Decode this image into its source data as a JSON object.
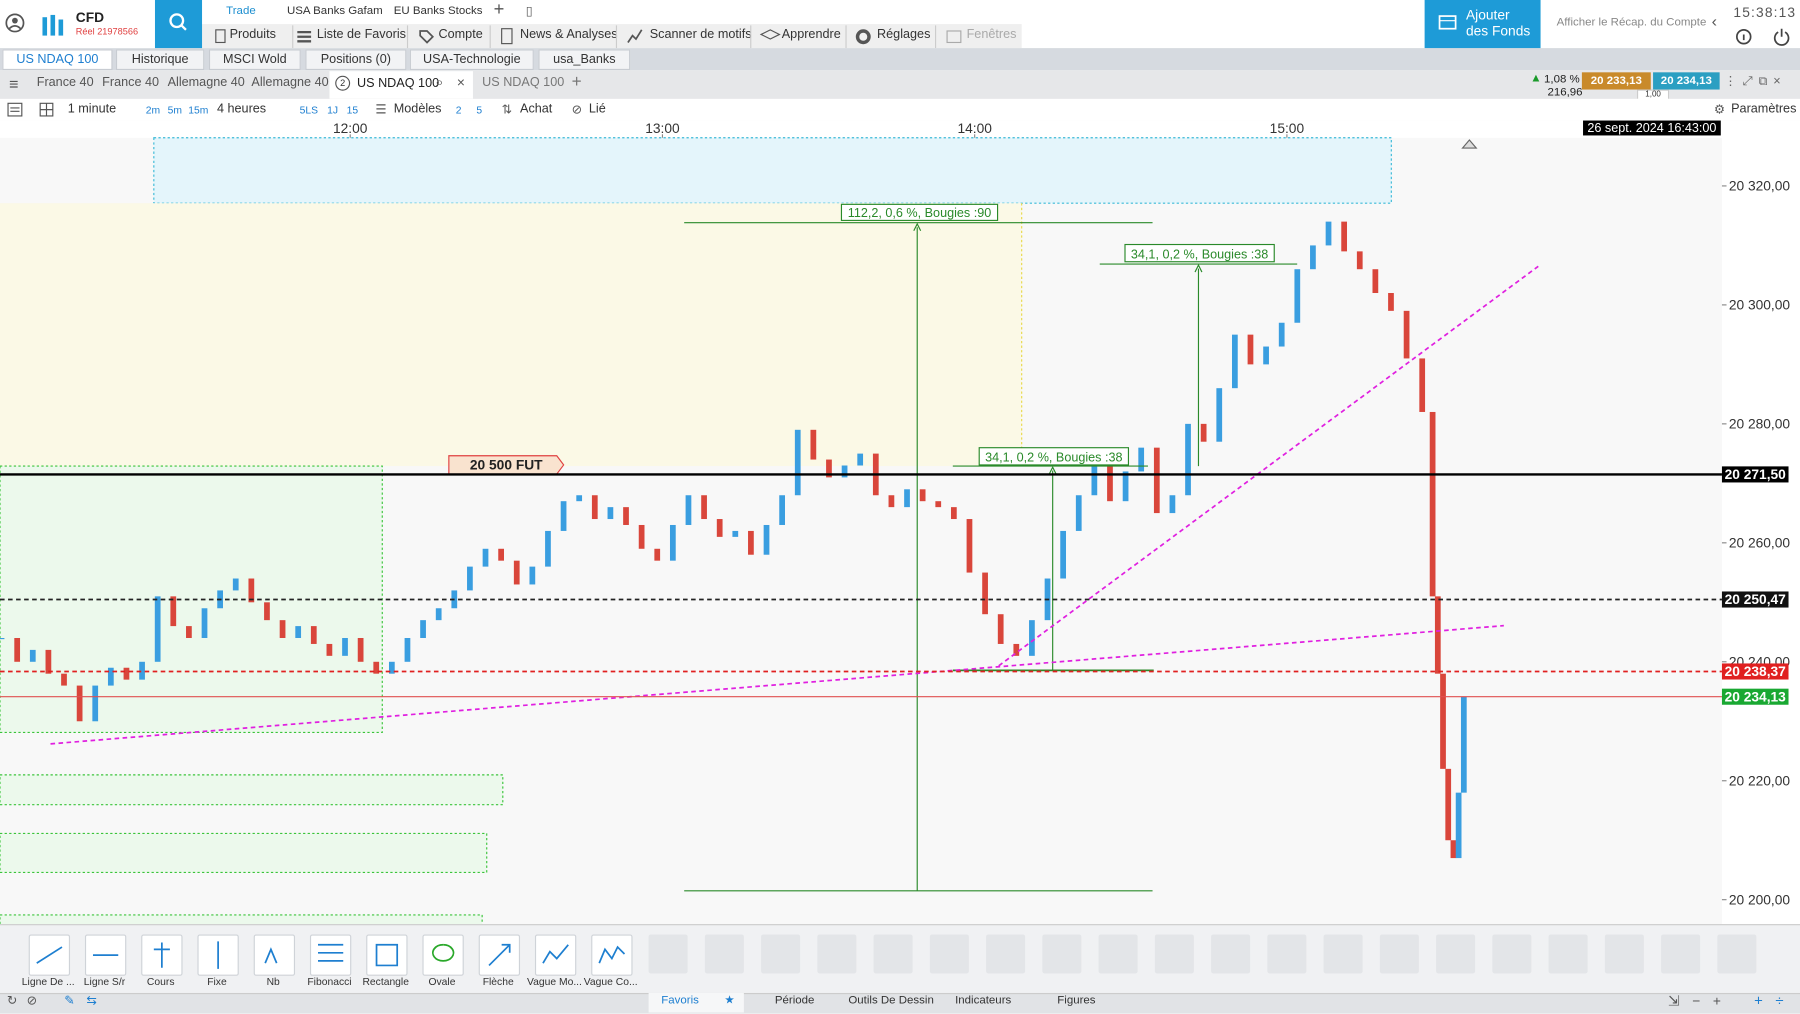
{
  "header": {
    "brand": "CFD",
    "account": "Réel 21978566",
    "tabs": [
      "Trade",
      "USA Banks Gafam",
      "EU Banks Stocks"
    ],
    "menu": [
      "Produits",
      "Liste de Favoris",
      "Compte",
      "News & Analyses",
      "Scanner de motifs",
      "Apprendre",
      "Réglages",
      "Fenêtres"
    ],
    "fund_button": [
      "Ajouter",
      "des Fonds"
    ],
    "summary_link": "Afficher le Récap. du Compte",
    "clock": "15:38:13"
  },
  "workspace_tabs": [
    "US NDAQ 100",
    "Historique",
    "MSCI Wold",
    "Positions (0)",
    "USA-Technologie",
    "usa_Banks"
  ],
  "chart_tabs": [
    "France 40",
    "France 40",
    "Allemagne 40",
    "Allemagne 40",
    "US NDAQ 100",
    "US NDAQ 100"
  ],
  "active_badge": "2",
  "quote": {
    "change": "1,08 %",
    "points": "216,96",
    "bid": "20 233,13",
    "ask": "20 234,13",
    "spread": "1,00"
  },
  "toolbar": {
    "interval": "1 minute",
    "quick": [
      "2m",
      "5m",
      "15m"
    ],
    "range": "4 heures",
    "views": [
      "5LS",
      "1J",
      "15"
    ],
    "templates": "Modèles",
    "layouts": [
      "2",
      "5"
    ],
    "buy": "Achat",
    "linked": "Lié",
    "settings": "Paramètres"
  },
  "chart": {
    "type": "candlestick",
    "date_label": "26 sept. 2024 16:43:00",
    "x": [
      653,
      656,
      659,
      662,
      665,
      668,
      671,
      674,
      677,
      680,
      683,
      686,
      689,
      692,
      695,
      698,
      701,
      704,
      707,
      710,
      713,
      716,
      719,
      722,
      725,
      728,
      731,
      734,
      737,
      740,
      743,
      746,
      749,
      752,
      755,
      758,
      761,
      764,
      767,
      770,
      773,
      776,
      779,
      782,
      785,
      788,
      791,
      794,
      797,
      800,
      803,
      806,
      809,
      812,
      815,
      818,
      821,
      824,
      827,
      830,
      833,
      836,
      839,
      842,
      845,
      848,
      851,
      854,
      857,
      860,
      863,
      866,
      869,
      872,
      875,
      878,
      881,
      884,
      887,
      890,
      893,
      896,
      899,
      902,
      905,
      908,
      911,
      914,
      917,
      920,
      923,
      926,
      928,
      929,
      930,
      931,
      932,
      933,
      934
    ],
    "close": [
      20244,
      20240,
      20242,
      20238,
      20236,
      20230,
      20236,
      20239,
      20237,
      20240,
      20251,
      20246,
      20244,
      20249,
      20252,
      20254,
      20250,
      20247,
      20244,
      20246,
      20243,
      20241,
      20244,
      20240,
      20238,
      20240,
      20244,
      20247,
      20249,
      20252,
      20256,
      20259,
      20257,
      20253,
      20256,
      20262,
      20267,
      20268,
      20264,
      20266,
      20263,
      20259,
      20257,
      20263,
      20268,
      20264,
      20261,
      20262,
      20258,
      20263,
      20268,
      20279,
      20274,
      20271,
      20273,
      20275,
      20268,
      20266,
      20269,
      20267,
      20266,
      20264,
      20255,
      20248,
      20243,
      20241,
      20247,
      20254,
      20262,
      20268,
      20274,
      20267,
      20272,
      20276,
      20265,
      20268,
      20280,
      20277,
      20286,
      20295,
      20290,
      20293,
      20297,
      20306,
      20310,
      20314,
      20309,
      20306,
      20302,
      20299,
      20291,
      20282,
      20251,
      20238,
      20222,
      20210,
      20207,
      20218,
      20234.13
    ],
    "up_color": "#3a9ee0",
    "down_color": "#d9463b",
    "xlim": [
      652.7,
      983.6
    ],
    "xticks": [
      {
        "value": 720,
        "label": "12:00"
      },
      {
        "value": 780,
        "label": "13:00"
      },
      {
        "value": 840,
        "label": "14:00"
      },
      {
        "value": 900,
        "label": "15:00"
      }
    ],
    "ylim": [
      20195.9,
      20328.1
    ],
    "yticks": [
      {
        "value": 20200,
        "label": "20 200,00"
      },
      {
        "value": 20220,
        "label": "20 220,00"
      },
      {
        "value": 20240,
        "label": "20 240,00"
      },
      {
        "value": 20260,
        "label": "20 260,00"
      },
      {
        "value": 20280,
        "label": "20 280,00"
      },
      {
        "value": 20300,
        "label": "20 300,00"
      },
      {
        "value": 20320,
        "label": "20 320,00"
      }
    ],
    "levels": [
      {
        "value": 20271.5,
        "label": "20 271,50",
        "color": "#000000",
        "label_color": "#000000",
        "dashed": false
      },
      {
        "value": 20250.47,
        "label": "20 250,47",
        "color": "#222222",
        "label_color": "#111111",
        "dashed": true
      },
      {
        "value": 20238.37,
        "label": "20 238,37",
        "color": "#e02020",
        "label_color": "#e02020",
        "dashed": true
      },
      {
        "value": 20234.13,
        "label": "20 234,13",
        "color": "#e05050",
        "label_color": "#19a832",
        "dashed": false
      }
    ],
    "annotations": [
      "112,2, 0,6 %, Bougies :90",
      "34,1, 0,2 %, Bougies :38",
      "34,1, 0,2 %, Bougies :38"
    ],
    "marker_label": "20 500 FUT"
  },
  "tools": [
    "Ligne De ...",
    "Ligne S/r",
    "Cours",
    "Fixe",
    "Nb",
    "Fibonacci",
    "Rectangle",
    "Ovale",
    "Flèche",
    "Vague Mo...",
    "Vague Co..."
  ],
  "bottom_tabs": [
    "Favoris",
    "Période",
    "Outils De Dessin",
    "Indicateurs",
    "Figures"
  ]
}
